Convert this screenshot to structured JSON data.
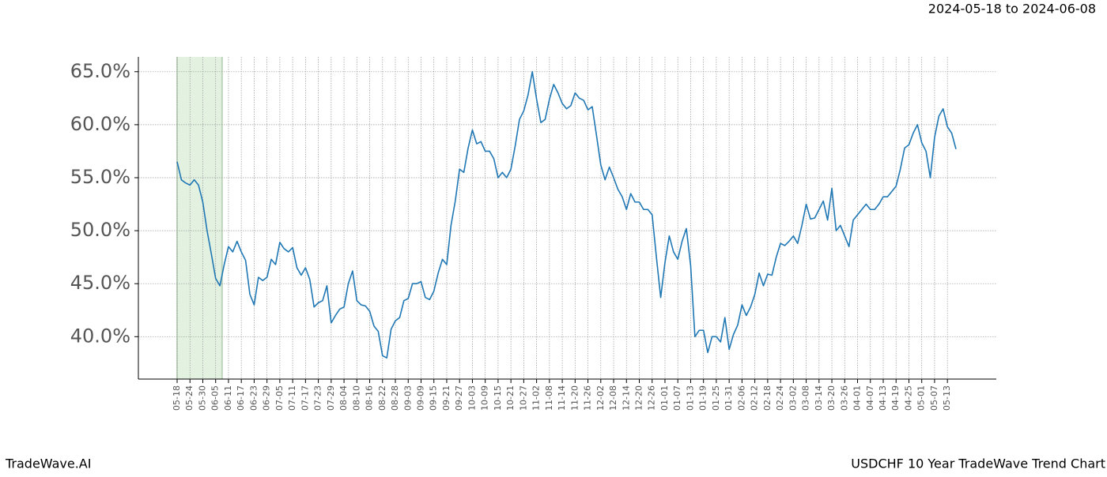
{
  "chart_data": {
    "type": "line",
    "range_label": "2024-05-18 to 2024-06-08",
    "brand": "TradeWave.AI",
    "title": "USDCHF 10 Year TradeWave Trend Chart",
    "highlight": {
      "start": 0,
      "end": 10.5,
      "color": "#e3f1e1"
    },
    "grid": true,
    "ylim": [
      36,
      66.4
    ],
    "yticks": [
      {
        "value": 40,
        "label": "40.0%"
      },
      {
        "value": 45,
        "label": "45.0%"
      },
      {
        "value": 50,
        "label": "50.0%"
      },
      {
        "value": 55,
        "label": "55.0%"
      },
      {
        "value": 60,
        "label": "60.0%"
      },
      {
        "value": 65,
        "label": "65.0%"
      }
    ],
    "categories": [
      "05-18",
      null,
      null,
      "05-24",
      null,
      null,
      "05-30",
      null,
      null,
      "06-05",
      null,
      null,
      "06-11",
      null,
      null,
      "06-17",
      null,
      null,
      "06-23",
      null,
      null,
      "06-29",
      null,
      null,
      "07-05",
      null,
      null,
      "07-11",
      null,
      null,
      "07-17",
      null,
      null,
      "07-23",
      null,
      null,
      "07-29",
      null,
      null,
      "08-04",
      null,
      null,
      "08-10",
      null,
      null,
      "08-16",
      null,
      null,
      "08-22",
      null,
      null,
      "08-28",
      null,
      null,
      "09-03",
      null,
      null,
      "09-09",
      null,
      null,
      "09-15",
      null,
      null,
      "09-21",
      null,
      null,
      "09-27",
      null,
      null,
      "10-03",
      null,
      null,
      "10-09",
      null,
      null,
      "10-15",
      null,
      null,
      "10-21",
      null,
      null,
      "10-27",
      null,
      null,
      "11-02",
      null,
      null,
      "11-08",
      null,
      null,
      "11-14",
      null,
      null,
      "11-20",
      null,
      null,
      "11-26",
      null,
      null,
      "12-02",
      null,
      null,
      "12-08",
      null,
      null,
      "12-14",
      null,
      null,
      "12-20",
      null,
      null,
      "12-26",
      null,
      null,
      "01-01",
      null,
      null,
      "01-07",
      null,
      null,
      "01-13",
      null,
      null,
      "01-19",
      null,
      null,
      "01-25",
      null,
      null,
      "01-31",
      null,
      null,
      "02-06",
      null,
      null,
      "02-12",
      null,
      null,
      "02-18",
      null,
      null,
      "02-24",
      null,
      null,
      "03-02",
      null,
      null,
      "03-08",
      null,
      null,
      "03-14",
      null,
      null,
      "03-20",
      null,
      null,
      "03-26",
      null,
      null,
      "04-01",
      null,
      null,
      "04-07",
      null,
      null,
      "04-13",
      null,
      null,
      "04-19",
      null,
      null,
      "04-25",
      null,
      null,
      "05-01",
      null,
      null,
      "05-07",
      null,
      null,
      "05-13",
      null,
      null
    ],
    "series": [
      {
        "color": "#1f77b4",
        "values": [
          56.5,
          54.8,
          54.5,
          54.3,
          54.8,
          54.3,
          52.7,
          50,
          47.8,
          45.5,
          44.8,
          46.8,
          48.5,
          48,
          49,
          48,
          47.2,
          44,
          43,
          45.6,
          45.3,
          45.6,
          47.3,
          46.8,
          48.9,
          48.3,
          48,
          48.4,
          46.5,
          45.8,
          46.5,
          45.4,
          42.8,
          43.2,
          43.4,
          44.8,
          41.3,
          42,
          42.6,
          42.8,
          45,
          46.2,
          43.4,
          43,
          42.9,
          42.4,
          41,
          40.5,
          38.2,
          38,
          40.7,
          41.5,
          41.8,
          43.4,
          43.6,
          45,
          45,
          45.2,
          43.7,
          43.5,
          44.3,
          46,
          47.3,
          46.8,
          50.5,
          52.8,
          55.8,
          55.5,
          57.8,
          59.5,
          58.2,
          58.4,
          57.5,
          57.5,
          56.8,
          55,
          55.5,
          55,
          55.8,
          58,
          60.5,
          61.3,
          62.8,
          65,
          62.4,
          60.2,
          60.5,
          62.4,
          63.8,
          63,
          62,
          61.5,
          61.8,
          63,
          62.5,
          62.3,
          61.4,
          61.7,
          59,
          56.2,
          54.8,
          56,
          55,
          53.9,
          53.2,
          52,
          53.5,
          52.7,
          52.7,
          52,
          52,
          51.5,
          47.5,
          43.7,
          47,
          49.5,
          48,
          47.3,
          49,
          50.2,
          46.7,
          40,
          40.6,
          40.6,
          38.5,
          40,
          40,
          39.5,
          41.8,
          38.8,
          40.2,
          41.1,
          43,
          42,
          42.8,
          44,
          46,
          44.8,
          45.9,
          45.8,
          47.5,
          48.8,
          48.6,
          49,
          49.5,
          48.8,
          50.5,
          52.5,
          51.1,
          51.2,
          52,
          52.8,
          51,
          54,
          50,
          50.5,
          49.5,
          48.5,
          51,
          51.5,
          52,
          52.5,
          52,
          52,
          52.5,
          53.2,
          53.2,
          53.7,
          54.2,
          55.8,
          57.8,
          58.1,
          59.2,
          60,
          58.3,
          57.5,
          55,
          58.8,
          60.8,
          61.5,
          59.8,
          59.2,
          57.7
        ]
      }
    ]
  }
}
